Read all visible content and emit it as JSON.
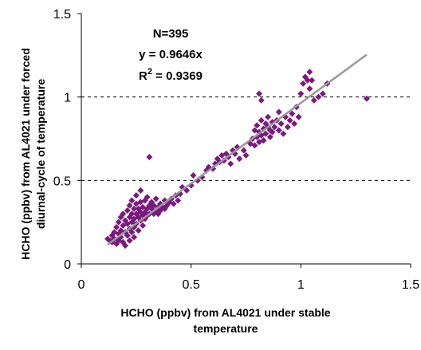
{
  "chart_data": {
    "type": "scatter",
    "xlabel_lines": [
      "HCHO (ppbv) from AL4021 under stable",
      "temperature"
    ],
    "ylabel_lines": [
      "HCHO (ppbv) from AL4021 under forced",
      "diurnal-cycle of temperature"
    ],
    "xlim": [
      0,
      1.5
    ],
    "ylim": [
      0,
      1.5
    ],
    "xticks": [
      0,
      0.5,
      1,
      1.5
    ],
    "yticks": [
      0,
      0.5,
      1,
      1.5
    ],
    "xtick_labels": [
      "0",
      "0.5",
      "1",
      "1.5"
    ],
    "ytick_labels": [
      "0",
      "0.5",
      "1",
      "1.5"
    ],
    "gridlines_y": [
      0.5,
      1.0
    ],
    "grid_style": "dashed",
    "point_color": "#7B1A7E",
    "fit_color": "#999999",
    "annotation": {
      "n": "N=395",
      "equation": "y = 0.9646x",
      "r2_prefix": "R",
      "r2_sup": "2",
      "r2_value": " = 0.9369"
    },
    "fit": {
      "slope": 0.9646,
      "x_range": [
        0.12,
        1.3
      ]
    },
    "points": [
      [
        0.12,
        0.15
      ],
      [
        0.13,
        0.14
      ],
      [
        0.14,
        0.17
      ],
      [
        0.14,
        0.13
      ],
      [
        0.15,
        0.19
      ],
      [
        0.15,
        0.15
      ],
      [
        0.16,
        0.12
      ],
      [
        0.16,
        0.22
      ],
      [
        0.17,
        0.18
      ],
      [
        0.17,
        0.25
      ],
      [
        0.17,
        0.14
      ],
      [
        0.18,
        0.2
      ],
      [
        0.18,
        0.16
      ],
      [
        0.18,
        0.28
      ],
      [
        0.19,
        0.23
      ],
      [
        0.19,
        0.13
      ],
      [
        0.19,
        0.3
      ],
      [
        0.2,
        0.19
      ],
      [
        0.2,
        0.26
      ],
      [
        0.2,
        0.11
      ],
      [
        0.21,
        0.24
      ],
      [
        0.21,
        0.32
      ],
      [
        0.21,
        0.17
      ],
      [
        0.22,
        0.28
      ],
      [
        0.22,
        0.21
      ],
      [
        0.22,
        0.35
      ],
      [
        0.22,
        0.14
      ],
      [
        0.23,
        0.3
      ],
      [
        0.23,
        0.25
      ],
      [
        0.23,
        0.19
      ],
      [
        0.23,
        0.38
      ],
      [
        0.24,
        0.27
      ],
      [
        0.24,
        0.33
      ],
      [
        0.24,
        0.22
      ],
      [
        0.24,
        0.16
      ],
      [
        0.25,
        0.3
      ],
      [
        0.25,
        0.36
      ],
      [
        0.25,
        0.24
      ],
      [
        0.25,
        0.41
      ],
      [
        0.26,
        0.28
      ],
      [
        0.26,
        0.33
      ],
      [
        0.26,
        0.2
      ],
      [
        0.27,
        0.31
      ],
      [
        0.27,
        0.37
      ],
      [
        0.27,
        0.26
      ],
      [
        0.27,
        0.44
      ],
      [
        0.28,
        0.29
      ],
      [
        0.28,
        0.34
      ],
      [
        0.28,
        0.23
      ],
      [
        0.29,
        0.31
      ],
      [
        0.29,
        0.38
      ],
      [
        0.29,
        0.27
      ],
      [
        0.3,
        0.33
      ],
      [
        0.3,
        0.29
      ],
      [
        0.3,
        0.4
      ],
      [
        0.31,
        0.35
      ],
      [
        0.31,
        0.3
      ],
      [
        0.31,
        0.64
      ],
      [
        0.32,
        0.33
      ],
      [
        0.32,
        0.37
      ],
      [
        0.33,
        0.3
      ],
      [
        0.33,
        0.35
      ],
      [
        0.34,
        0.32
      ],
      [
        0.34,
        0.39
      ],
      [
        0.35,
        0.34
      ],
      [
        0.35,
        0.3
      ],
      [
        0.36,
        0.36
      ],
      [
        0.36,
        0.32
      ],
      [
        0.37,
        0.34
      ],
      [
        0.38,
        0.38
      ],
      [
        0.38,
        0.33
      ],
      [
        0.39,
        0.35
      ],
      [
        0.4,
        0.37
      ],
      [
        0.41,
        0.39
      ],
      [
        0.42,
        0.36
      ],
      [
        0.43,
        0.41
      ],
      [
        0.44,
        0.38
      ],
      [
        0.45,
        0.42
      ],
      [
        0.46,
        0.46
      ],
      [
        0.48,
        0.44
      ],
      [
        0.5,
        0.47
      ],
      [
        0.51,
        0.53
      ],
      [
        0.53,
        0.5
      ],
      [
        0.55,
        0.52
      ],
      [
        0.57,
        0.56
      ],
      [
        0.58,
        0.58
      ],
      [
        0.6,
        0.57
      ],
      [
        0.61,
        0.6
      ],
      [
        0.62,
        0.63
      ],
      [
        0.63,
        0.61
      ],
      [
        0.64,
        0.65
      ],
      [
        0.65,
        0.62
      ],
      [
        0.66,
        0.66
      ],
      [
        0.67,
        0.64
      ],
      [
        0.68,
        0.6
      ],
      [
        0.69,
        0.68
      ],
      [
        0.7,
        0.66
      ],
      [
        0.71,
        0.7
      ],
      [
        0.72,
        0.63
      ],
      [
        0.74,
        0.68
      ],
      [
        0.75,
        0.65
      ],
      [
        0.77,
        0.72
      ],
      [
        0.78,
        0.75
      ],
      [
        0.79,
        0.71
      ],
      [
        0.79,
        0.8
      ],
      [
        0.8,
        0.76
      ],
      [
        0.8,
        0.83
      ],
      [
        0.81,
        0.73
      ],
      [
        0.81,
        0.79
      ],
      [
        0.82,
        0.86
      ],
      [
        0.82,
        0.77
      ],
      [
        0.83,
        0.81
      ],
      [
        0.83,
        0.74
      ],
      [
        0.84,
        0.84
      ],
      [
        0.84,
        0.78
      ],
      [
        0.85,
        0.88
      ],
      [
        0.85,
        0.82
      ],
      [
        0.86,
        0.76
      ],
      [
        0.86,
        0.8
      ],
      [
        0.87,
        0.85
      ],
      [
        0.87,
        0.79
      ],
      [
        0.88,
        0.82
      ],
      [
        0.89,
        0.86
      ],
      [
        0.9,
        0.8
      ],
      [
        0.9,
        0.91
      ],
      [
        0.91,
        0.84
      ],
      [
        0.92,
        0.78
      ],
      [
        0.93,
        0.88
      ],
      [
        0.94,
        0.82
      ],
      [
        0.95,
        0.86
      ],
      [
        0.96,
        0.9
      ],
      [
        0.97,
        0.84
      ],
      [
        0.98,
        0.94
      ],
      [
        0.99,
        0.88
      ],
      [
        1.0,
        1.02
      ],
      [
        1.01,
        1.08
      ],
      [
        1.02,
        1.12
      ],
      [
        1.03,
        1.1
      ],
      [
        1.04,
        1.15
      ],
      [
        1.04,
        1.05
      ],
      [
        1.05,
        1.1
      ],
      [
        1.06,
        0.98
      ],
      [
        1.08,
        1.0
      ],
      [
        1.1,
        1.02
      ],
      [
        1.12,
        1.08
      ],
      [
        0.81,
        1.02
      ],
      [
        0.82,
        0.98
      ],
      [
        1.3,
        0.99
      ]
    ]
  }
}
